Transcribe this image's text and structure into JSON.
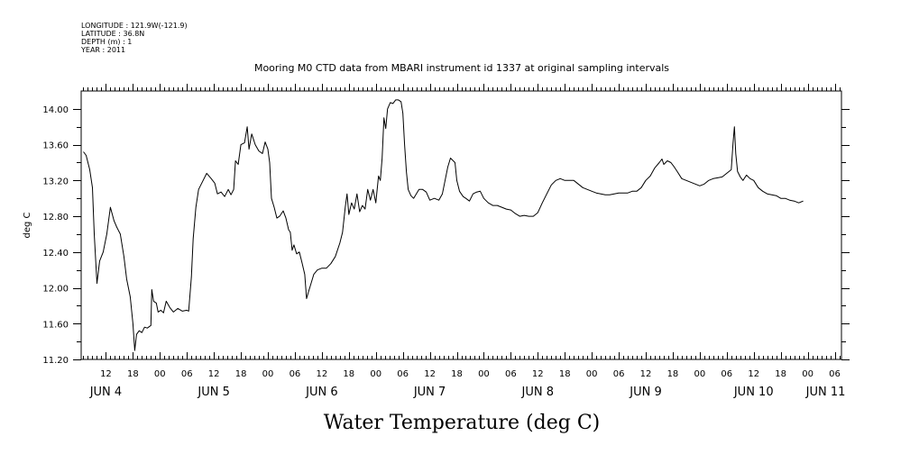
{
  "header": {
    "longitude": "LONGITUDE : 121.9W(-121.9)",
    "latitude": "LATITUDE : 36.8N",
    "depth": "DEPTH (m) : 1",
    "year": "YEAR : 2011"
  },
  "chart_data": {
    "type": "line",
    "title": "Mooring M0 CTD data from MBARI instrument id 1337 at original sampling intervals",
    "xlabel": "Water Temperature (deg C)",
    "ylabel": "deg C",
    "x_unit": "hours since 2011-06-04 00:00",
    "xlim": [
      6.5,
      175.5
    ],
    "ylim": [
      11.2,
      14.2
    ],
    "yticks": [
      11.2,
      11.6,
      12.0,
      12.4,
      12.8,
      13.2,
      13.6,
      14.0
    ],
    "ytick_labels": [
      "11.20",
      "11.60",
      "12.00",
      "12.40",
      "12.80",
      "13.20",
      "13.60",
      "14.00"
    ],
    "xtick_hours": [
      12,
      18,
      24,
      30,
      36,
      42,
      48,
      54,
      60,
      66,
      72,
      78,
      84,
      90,
      96,
      102,
      108,
      114,
      120,
      126,
      132,
      138,
      144,
      150,
      156,
      162,
      168,
      174
    ],
    "xtick_labels": [
      "12",
      "18",
      "00",
      "06",
      "12",
      "18",
      "00",
      "06",
      "12",
      "18",
      "00",
      "06",
      "12",
      "18",
      "00",
      "06",
      "12",
      "18",
      "00",
      "06",
      "12",
      "18",
      "00",
      "06",
      "12",
      "18",
      "00",
      "06"
    ],
    "day_labels": [
      {
        "hour": 12,
        "text": "JUN  4"
      },
      {
        "hour": 36,
        "text": "JUN  5"
      },
      {
        "hour": 60,
        "text": "JUN  6"
      },
      {
        "hour": 84,
        "text": "JUN  7"
      },
      {
        "hour": 108,
        "text": "JUN  8"
      },
      {
        "hour": 132,
        "text": "JUN  9"
      },
      {
        "hour": 156,
        "text": "JUN 10"
      },
      {
        "hour": 172,
        "text": "JUN 11"
      }
    ],
    "grid": false,
    "series": [
      {
        "line_color": "#000000",
        "points": [
          [
            7,
            13.52
          ],
          [
            7.6,
            13.48
          ],
          [
            8.4,
            13.32
          ],
          [
            9,
            13.12
          ],
          [
            9.4,
            12.6
          ],
          [
            10,
            12.05
          ],
          [
            10.6,
            12.3
          ],
          [
            11.4,
            12.4
          ],
          [
            12.2,
            12.6
          ],
          [
            13,
            12.9
          ],
          [
            13.8,
            12.75
          ],
          [
            14.4,
            12.68
          ],
          [
            15.2,
            12.6
          ],
          [
            16,
            12.35
          ],
          [
            16.6,
            12.1
          ],
          [
            17.4,
            11.9
          ],
          [
            18,
            11.6
          ],
          [
            18.4,
            11.3
          ],
          [
            18.8,
            11.48
          ],
          [
            19.4,
            11.52
          ],
          [
            20,
            11.5
          ],
          [
            20.6,
            11.56
          ],
          [
            21.2,
            11.55
          ],
          [
            22,
            11.58
          ],
          [
            22.2,
            11.98
          ],
          [
            22.6,
            11.85
          ],
          [
            23.2,
            11.83
          ],
          [
            23.6,
            11.73
          ],
          [
            24.2,
            11.75
          ],
          [
            24.8,
            11.72
          ],
          [
            25.4,
            11.85
          ],
          [
            26.2,
            11.78
          ],
          [
            27,
            11.73
          ],
          [
            28,
            11.77
          ],
          [
            29,
            11.74
          ],
          [
            30,
            11.75
          ],
          [
            30.4,
            11.74
          ],
          [
            31,
            12.12
          ],
          [
            31.4,
            12.55
          ],
          [
            32,
            12.9
          ],
          [
            32.6,
            13.1
          ],
          [
            33.6,
            13.2
          ],
          [
            34.4,
            13.28
          ],
          [
            35.4,
            13.22
          ],
          [
            36.2,
            13.17
          ],
          [
            36.8,
            13.05
          ],
          [
            37.6,
            13.07
          ],
          [
            38.4,
            13.02
          ],
          [
            39.2,
            13.1
          ],
          [
            39.8,
            13.04
          ],
          [
            40.4,
            13.1
          ],
          [
            40.8,
            13.42
          ],
          [
            41.4,
            13.38
          ],
          [
            42,
            13.6
          ],
          [
            42.8,
            13.62
          ],
          [
            43.4,
            13.8
          ],
          [
            43.8,
            13.55
          ],
          [
            44.4,
            13.72
          ],
          [
            45.2,
            13.6
          ],
          [
            46,
            13.53
          ],
          [
            46.8,
            13.5
          ],
          [
            47.4,
            13.63
          ],
          [
            48,
            13.55
          ],
          [
            48.4,
            13.4
          ],
          [
            48.8,
            13.0
          ],
          [
            49.4,
            12.9
          ],
          [
            50,
            12.78
          ],
          [
            50.6,
            12.8
          ],
          [
            51.4,
            12.86
          ],
          [
            52,
            12.78
          ],
          [
            52.6,
            12.65
          ],
          [
            53,
            12.62
          ],
          [
            53.4,
            12.42
          ],
          [
            53.8,
            12.48
          ],
          [
            54.4,
            12.38
          ],
          [
            55,
            12.4
          ],
          [
            55.6,
            12.28
          ],
          [
            56.2,
            12.15
          ],
          [
            56.6,
            11.88
          ],
          [
            57,
            11.95
          ],
          [
            57.6,
            12.05
          ],
          [
            58.2,
            12.15
          ],
          [
            59,
            12.2
          ],
          [
            60,
            12.22
          ],
          [
            61,
            12.22
          ],
          [
            62,
            12.27
          ],
          [
            63,
            12.35
          ],
          [
            64,
            12.5
          ],
          [
            64.6,
            12.62
          ],
          [
            65.2,
            12.9
          ],
          [
            65.6,
            13.05
          ],
          [
            66,
            12.82
          ],
          [
            66.6,
            12.95
          ],
          [
            67.2,
            12.88
          ],
          [
            67.8,
            13.05
          ],
          [
            68.4,
            12.85
          ],
          [
            69,
            12.92
          ],
          [
            69.6,
            12.88
          ],
          [
            70.2,
            13.1
          ],
          [
            70.8,
            12.98
          ],
          [
            71.4,
            13.1
          ],
          [
            72,
            12.95
          ],
          [
            72.6,
            13.25
          ],
          [
            73,
            13.2
          ],
          [
            73.4,
            13.45
          ],
          [
            73.8,
            13.9
          ],
          [
            74.2,
            13.78
          ],
          [
            74.6,
            14.0
          ],
          [
            75.2,
            14.07
          ],
          [
            75.8,
            14.06
          ],
          [
            76.4,
            14.1
          ],
          [
            77,
            14.1
          ],
          [
            77.6,
            14.08
          ],
          [
            78,
            13.95
          ],
          [
            78.4,
            13.6
          ],
          [
            78.8,
            13.3
          ],
          [
            79.2,
            13.1
          ],
          [
            79.8,
            13.03
          ],
          [
            80.4,
            13.0
          ],
          [
            81,
            13.05
          ],
          [
            81.6,
            13.1
          ],
          [
            82.4,
            13.1
          ],
          [
            83.2,
            13.07
          ],
          [
            84,
            12.98
          ],
          [
            85,
            13.0
          ],
          [
            86,
            12.98
          ],
          [
            86.8,
            13.05
          ],
          [
            87.4,
            13.2
          ],
          [
            88,
            13.35
          ],
          [
            88.6,
            13.45
          ],
          [
            89.2,
            13.42
          ],
          [
            89.6,
            13.4
          ],
          [
            90,
            13.2
          ],
          [
            90.6,
            13.08
          ],
          [
            91.4,
            13.02
          ],
          [
            92,
            13.0
          ],
          [
            92.8,
            12.97
          ],
          [
            93.6,
            13.05
          ],
          [
            94.4,
            13.07
          ],
          [
            95.2,
            13.08
          ],
          [
            96,
            13.0
          ],
          [
            97,
            12.95
          ],
          [
            98,
            12.92
          ],
          [
            99,
            12.92
          ],
          [
            100,
            12.9
          ],
          [
            101,
            12.88
          ],
          [
            102,
            12.87
          ],
          [
            103,
            12.83
          ],
          [
            104,
            12.8
          ],
          [
            105,
            12.81
          ],
          [
            106,
            12.8
          ],
          [
            107,
            12.8
          ],
          [
            108,
            12.84
          ],
          [
            109,
            12.95
          ],
          [
            110,
            13.05
          ],
          [
            111,
            13.15
          ],
          [
            112,
            13.2
          ],
          [
            113,
            13.22
          ],
          [
            114,
            13.2
          ],
          [
            115,
            13.2
          ],
          [
            116,
            13.2
          ],
          [
            117,
            13.16
          ],
          [
            118,
            13.12
          ],
          [
            119,
            13.1
          ],
          [
            120,
            13.08
          ],
          [
            121,
            13.06
          ],
          [
            122,
            13.05
          ],
          [
            123,
            13.04
          ],
          [
            124,
            13.04
          ],
          [
            125,
            13.05
          ],
          [
            126,
            13.06
          ],
          [
            127,
            13.06
          ],
          [
            128,
            13.06
          ],
          [
            129,
            13.08
          ],
          [
            130,
            13.08
          ],
          [
            131,
            13.12
          ],
          [
            132,
            13.2
          ],
          [
            133,
            13.25
          ],
          [
            134,
            13.34
          ],
          [
            135,
            13.4
          ],
          [
            135.6,
            13.44
          ],
          [
            136,
            13.38
          ],
          [
            136.8,
            13.42
          ],
          [
            137.6,
            13.4
          ],
          [
            138.2,
            13.36
          ],
          [
            139,
            13.3
          ],
          [
            140,
            13.22
          ],
          [
            141,
            13.2
          ],
          [
            142,
            13.18
          ],
          [
            143,
            13.16
          ],
          [
            144,
            13.14
          ],
          [
            145,
            13.16
          ],
          [
            146,
            13.2
          ],
          [
            147,
            13.22
          ],
          [
            148,
            13.23
          ],
          [
            149,
            13.24
          ],
          [
            150,
            13.28
          ],
          [
            151,
            13.32
          ],
          [
            151.4,
            13.62
          ],
          [
            151.7,
            13.8
          ],
          [
            152,
            13.5
          ],
          [
            152.4,
            13.3
          ],
          [
            153,
            13.24
          ],
          [
            153.6,
            13.2
          ],
          [
            154.4,
            13.26
          ],
          [
            155.2,
            13.22
          ],
          [
            156,
            13.2
          ],
          [
            157,
            13.12
          ],
          [
            158,
            13.08
          ],
          [
            159,
            13.05
          ],
          [
            160,
            13.04
          ],
          [
            161,
            13.03
          ],
          [
            162,
            13.0
          ],
          [
            163,
            13.0
          ],
          [
            164,
            12.98
          ],
          [
            165,
            12.97
          ],
          [
            166,
            12.95
          ],
          [
            167,
            12.97
          ]
        ]
      }
    ]
  }
}
